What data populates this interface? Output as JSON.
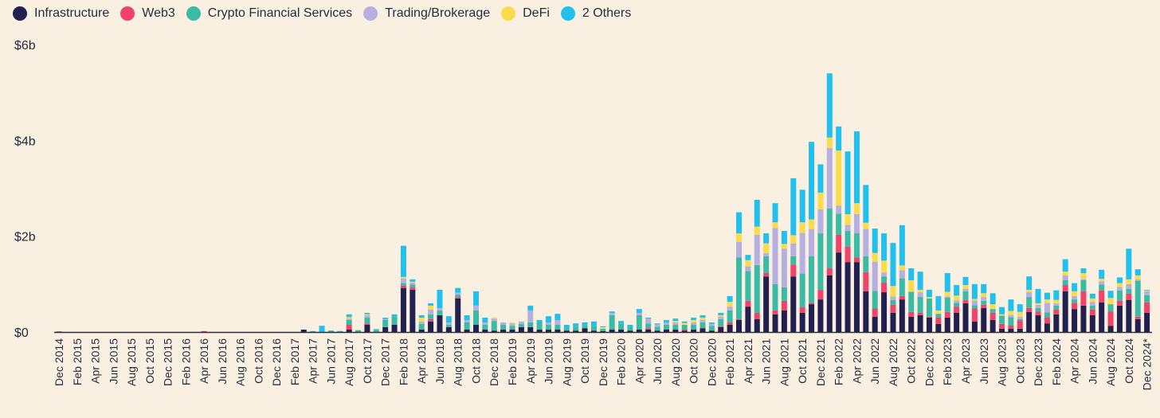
{
  "chart_data": {
    "type": "bar",
    "stacked": true,
    "title": "",
    "xlabel": "",
    "ylabel": "",
    "ylim": [
      0,
      6
    ],
    "y_ticks": [
      {
        "value": 0,
        "label": "$0"
      },
      {
        "value": 2,
        "label": "$2b"
      },
      {
        "value": 4,
        "label": "$4b"
      },
      {
        "value": 6,
        "label": "$6b"
      }
    ],
    "unit": "USD billions",
    "x_period": "monthly, Dec 2014 to Dec 2024",
    "tick_labels": [
      "Dec 2014",
      "Feb 2015",
      "Apr 2015",
      "Jun 2015",
      "Aug 2015",
      "Oct 2015",
      "Dec 2015",
      "Feb 2016",
      "Apr 2016",
      "Jun 2016",
      "Aug 2016",
      "Oct 2016",
      "Dec 2016",
      "Feb 2017",
      "Apr 2017",
      "Jun 2017",
      "Aug 2017",
      "Oct 2017",
      "Dec 2017",
      "Feb 2018",
      "Apr 2018",
      "Jun 2018",
      "Aug 2018",
      "Oct 2018",
      "Dec 2018",
      "Feb 2019",
      "Apr 2019",
      "Jun 2019",
      "Aug 2019",
      "Oct 2019",
      "Dec 2019",
      "Feb 2020",
      "Apr 2020",
      "Jun 2020",
      "Aug 2020",
      "Oct 2020",
      "Dec 2020",
      "Feb 2021",
      "Apr 2021",
      "Jun 2021",
      "Aug 2021",
      "Oct 2021",
      "Dec 2021",
      "Feb 2022",
      "Apr 2022",
      "Jun 2022",
      "Aug 2022",
      "Oct 2022",
      "Dec 2022",
      "Feb 2023",
      "Apr 2023",
      "Jun 2023",
      "Aug 2023",
      "Oct 2023",
      "Dec 2023",
      "Feb 2024",
      "Apr 2024",
      "Jun 2024",
      "Aug 2024",
      "Oct 2024",
      "Dec 2024*"
    ],
    "legend_position": "top-left",
    "grid": false,
    "series": [
      {
        "name": "Infrastructure",
        "color": "#22204f",
        "values": [
          0.01,
          0,
          0,
          0,
          0,
          0,
          0,
          0,
          0,
          0,
          0,
          0,
          0,
          0,
          0,
          0,
          0,
          0,
          0,
          0,
          0,
          0,
          0,
          0,
          0,
          0,
          0,
          0.05,
          0,
          0,
          0,
          0,
          0.05,
          0,
          0.15,
          0,
          0.1,
          0.15,
          0.92,
          0.88,
          0.05,
          0.22,
          0.35,
          0.1,
          0.7,
          0.05,
          0.15,
          0.05,
          0.03,
          0.05,
          0.05,
          0.1,
          0.1,
          0.05,
          0.05,
          0.05,
          0.03,
          0.03,
          0.08,
          0.03,
          0.02,
          0.05,
          0.05,
          0.03,
          0.05,
          0.05,
          0.03,
          0.05,
          0.05,
          0.03,
          0.05,
          0.08,
          0.03,
          0.1,
          0.15,
          0.25,
          0.53,
          0.27,
          1.16,
          0.37,
          0.45,
          1.16,
          0.4,
          0.58,
          0.68,
          1.18,
          1.66,
          1.46,
          1.46,
          0.85,
          0.32,
          0.83,
          0.4,
          0.68,
          0.32,
          0.35,
          0.3,
          0.17,
          0.3,
          0.4,
          0.6,
          0.22,
          0.5,
          0.25,
          0.07,
          0.07,
          0.07,
          0.42,
          0.35,
          0.18,
          0.37,
          0.85,
          0.48,
          0.55,
          0.35,
          0.62,
          0.13,
          0.55,
          0.67,
          0.27,
          0.4
        ]
      },
      {
        "name": "Web3",
        "color": "#f0436a",
        "values": [
          0,
          0,
          0,
          0,
          0,
          0,
          0,
          0,
          0,
          0,
          0,
          0,
          0,
          0,
          0,
          0,
          0.02,
          0,
          0,
          0,
          0,
          0,
          0,
          0,
          0,
          0,
          0,
          0,
          0,
          0,
          0,
          0,
          0.1,
          0,
          0.03,
          0,
          0,
          0,
          0.05,
          0.05,
          0,
          0.05,
          0,
          0,
          0.03,
          0,
          0,
          0,
          0,
          0,
          0,
          0,
          0,
          0,
          0,
          0,
          0,
          0,
          0,
          0,
          0,
          0,
          0,
          0,
          0,
          0.03,
          0,
          0,
          0,
          0.02,
          0,
          0,
          0,
          0.02,
          0.05,
          0.02,
          0.12,
          0.13,
          0.07,
          0.08,
          0.2,
          0.25,
          0.12,
          0.03,
          0.2,
          0.15,
          0.37,
          0.32,
          0.1,
          0.4,
          0.17,
          0.2,
          0.17,
          0.07,
          0.1,
          0.05,
          0.02,
          0.13,
          0.12,
          0.13,
          0.07,
          0.27,
          0.07,
          0.15,
          0.1,
          0.07,
          0.17,
          0.08,
          0.08,
          0.13,
          0.1,
          0.13,
          0.13,
          0.3,
          0.12,
          0.25,
          0.3,
          0.1,
          0.13,
          0.05,
          0.22
        ]
      },
      {
        "name": "Crypto Financial Services",
        "color": "#3bbaa6",
        "values": [
          0,
          0,
          0,
          0,
          0,
          0,
          0,
          0,
          0,
          0,
          0,
          0,
          0,
          0,
          0,
          0,
          0,
          0,
          0,
          0,
          0,
          0,
          0,
          0,
          0,
          0,
          0,
          0,
          0,
          0,
          0.03,
          0,
          0.1,
          0.04,
          0.12,
          0.04,
          0.15,
          0.18,
          0.05,
          0.06,
          0.12,
          0.1,
          0.1,
          0.05,
          0.05,
          0.15,
          0.3,
          0.1,
          0.2,
          0.1,
          0.08,
          0.07,
          0.1,
          0.15,
          0.1,
          0.1,
          0.05,
          0.08,
          0.05,
          0.1,
          0.05,
          0.3,
          0.12,
          0.08,
          0.3,
          0.1,
          0.08,
          0.1,
          0.1,
          0.1,
          0.1,
          0.12,
          0.1,
          0.15,
          0.25,
          1.29,
          0.62,
          1.0,
          0.35,
          0.55,
          0.28,
          0.17,
          0.7,
          0.97,
          1.18,
          1.25,
          0.44,
          0.33,
          0.5,
          0.33,
          0.37,
          0.13,
          0.1,
          0.37,
          0.42,
          0.33,
          0.38,
          0.08,
          0.3,
          0.08,
          0.18,
          0.07,
          0.08,
          0.08,
          0.17,
          0.17,
          0.03,
          0.23,
          0.07,
          0.1,
          0.08,
          0.1,
          0.07,
          0.23,
          0.08,
          0.12,
          0.15,
          0.22,
          0.1,
          0.75,
          0.15
        ]
      },
      {
        "name": "Trading/Brokerage",
        "color": "#b5b0e0",
        "values": [
          0,
          0,
          0,
          0,
          0,
          0,
          0,
          0,
          0,
          0,
          0,
          0,
          0,
          0,
          0,
          0,
          0,
          0,
          0,
          0,
          0,
          0,
          0,
          0,
          0,
          0,
          0,
          0,
          0,
          0,
          0,
          0,
          0.03,
          0,
          0.05,
          0,
          0.02,
          0,
          0.1,
          0.04,
          0.05,
          0.1,
          0.05,
          0.05,
          0.04,
          0.05,
          0.1,
          0.05,
          0.05,
          0.05,
          0.05,
          0.05,
          0.25,
          0,
          0.05,
          0.1,
          0,
          0,
          0,
          0,
          0,
          0.05,
          0,
          0,
          0.05,
          0.1,
          0.05,
          0.05,
          0.05,
          0,
          0.05,
          0.05,
          0.04,
          0.05,
          0.08,
          0.32,
          0.1,
          0.63,
          0.07,
          1.17,
          0.81,
          0.27,
          0.85,
          0.57,
          0.5,
          1.26,
          0.17,
          0.13,
          0.4,
          0.57,
          0.61,
          0.08,
          0.07,
          0.17,
          0,
          0.1,
          0,
          0,
          0.02,
          0.05,
          0.05,
          0.1,
          0.08,
          0,
          0,
          0.05,
          0.05,
          0.1,
          0.07,
          0.2,
          0.05,
          0.1,
          0.07,
          0.03,
          0.08,
          0.07,
          0,
          0.07,
          0.1,
          0.03,
          0.08
        ]
      },
      {
        "name": "DeFi",
        "color": "#fadb4b",
        "values": [
          0,
          0,
          0,
          0,
          0,
          0,
          0,
          0,
          0,
          0,
          0,
          0,
          0,
          0,
          0,
          0,
          0,
          0,
          0,
          0,
          0,
          0,
          0,
          0,
          0,
          0,
          0,
          0,
          0,
          0,
          0,
          0,
          0.03,
          0,
          0.02,
          0,
          0,
          0,
          0.03,
          0.02,
          0.08,
          0.08,
          0,
          0,
          0,
          0,
          0,
          0,
          0.02,
          0,
          0.02,
          0,
          0,
          0,
          0,
          0,
          0,
          0,
          0,
          0,
          0.03,
          0,
          0,
          0,
          0,
          0,
          0,
          0,
          0.03,
          0.04,
          0.05,
          0.05,
          0,
          0.03,
          0.1,
          0.18,
          0.13,
          0.17,
          0.2,
          0.12,
          0.1,
          0.17,
          0.22,
          0.2,
          0.35,
          0.22,
          1.15,
          0.22,
          0.23,
          0.13,
          0.18,
          0.25,
          0.22,
          0.1,
          0.24,
          0.05,
          0.03,
          0.07,
          0.1,
          0.1,
          0.08,
          0.03,
          0.08,
          0.1,
          0.03,
          0.08,
          0.1,
          0.05,
          0.03,
          0.07,
          0.07,
          0.08,
          0.1,
          0.12,
          0.07,
          0.05,
          0.13,
          0.08,
          0.1,
          0.08,
          0.02
        ]
      },
      {
        "name": "2 Others",
        "color": "#22c0ee",
        "values": [
          0,
          0,
          0,
          0,
          0,
          0,
          0,
          0,
          0,
          0,
          0,
          0,
          0,
          0,
          0,
          0,
          0,
          0,
          0,
          0,
          0,
          0,
          0,
          0,
          0,
          0,
          0,
          0,
          0.02,
          0.13,
          0,
          0.02,
          0.06,
          0,
          0.03,
          0.02,
          0.03,
          0.04,
          0.65,
          0.05,
          0.05,
          0.05,
          0.38,
          0.13,
          0.1,
          0.1,
          0.3,
          0.1,
          0,
          0,
          0,
          0,
          0.1,
          0.05,
          0.13,
          0.13,
          0.07,
          0.07,
          0.07,
          0.09,
          0.02,
          0.03,
          0.06,
          0.04,
          0.08,
          0.02,
          0.02,
          0.05,
          0.05,
          0.03,
          0.05,
          0.05,
          0.03,
          0.05,
          0.12,
          0.44,
          0.11,
          0.56,
          0.21,
          0.4,
          0.27,
          1.19,
          0.68,
          1.62,
          0.59,
          1.34,
          0.5,
          1.31,
          1.5,
          0.79,
          0.51,
          0.57,
          0.9,
          0.84,
          0.25,
          0.38,
          0.15,
          0.3,
          0.39,
          0.22,
          0.17,
          0.31,
          0.19,
          0.23,
          0.15,
          0.24,
          0.16,
          0.28,
          0.3,
          0.14,
          0.2,
          0.26,
          0.17,
          0.1,
          0.1,
          0.19,
          0.15,
          0.12,
          0.64,
          0.13,
          0.01
        ]
      }
    ]
  }
}
